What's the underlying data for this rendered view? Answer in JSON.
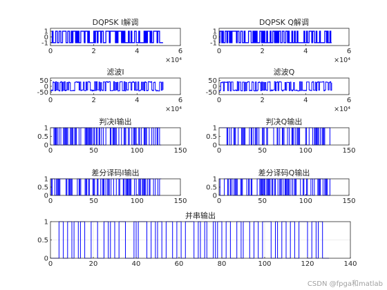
{
  "figure": {
    "watermark": "CSDN @fpga和matlab"
  },
  "colors": {
    "signal": "#0000ff",
    "axes": "#262626",
    "grid": "#dcdcdc",
    "text": "#262626"
  },
  "chart_data": [
    {
      "type": "line",
      "title": "DQPSK I解调",
      "xlim": [
        0,
        60000
      ],
      "ylim": [
        -1.5,
        1.5
      ],
      "xticks": [
        "0",
        "2",
        "4",
        "6"
      ],
      "yticks": [
        "-1",
        "0",
        "1"
      ],
      "x_exponent": "×10⁴",
      "grid": false,
      "x_end": 52000,
      "levels": [
        -1,
        1
      ],
      "symbols": 130
    },
    {
      "type": "line",
      "title": "DQPSK Q解调",
      "xlim": [
        0,
        60000
      ],
      "ylim": [
        -1.5,
        1.5
      ],
      "xticks": [
        "0",
        "2",
        "4",
        "6"
      ],
      "yticks": [
        "-1",
        "0",
        "1"
      ],
      "x_exponent": "×10⁴",
      "grid": false,
      "x_end": 52000,
      "levels": [
        -1,
        1
      ],
      "symbols": 130
    },
    {
      "type": "line",
      "title": "滤波I",
      "xlim": [
        0,
        60000
      ],
      "ylim": [
        -70,
        70
      ],
      "xticks": [
        "0",
        "2",
        "4",
        "6"
      ],
      "yticks": [
        "-50",
        "0",
        "50"
      ],
      "x_exponent": "×10⁴",
      "grid": false,
      "x_end": 52000,
      "levels": [
        -40,
        40
      ],
      "symbols": 130
    },
    {
      "type": "line",
      "title": "滤波Q",
      "xlim": [
        0,
        60000
      ],
      "ylim": [
        -70,
        70
      ],
      "xticks": [
        "0",
        "2",
        "4",
        "6"
      ],
      "yticks": [
        "-50",
        "0",
        "50"
      ],
      "x_exponent": "×10⁴",
      "grid": false,
      "x_end": 52000,
      "levels": [
        -40,
        40
      ],
      "symbols": 130
    },
    {
      "type": "line",
      "title": "判决I输出",
      "xlim": [
        0,
        150
      ],
      "ylim": [
        0,
        1
      ],
      "xticks": [
        "0",
        "50",
        "100",
        "150"
      ],
      "yticks": [
        "0",
        "0.5",
        "1"
      ],
      "grid": false,
      "x_end": 128,
      "levels": [
        0,
        1
      ],
      "symbols": 128
    },
    {
      "type": "line",
      "title": "判决Q输出",
      "xlim": [
        0,
        150
      ],
      "ylim": [
        0,
        1
      ],
      "xticks": [
        "0",
        "50",
        "100",
        "150"
      ],
      "yticks": [
        "0",
        "0.5",
        "1"
      ],
      "grid": false,
      "x_end": 128,
      "levels": [
        0,
        1
      ],
      "symbols": 128
    },
    {
      "type": "line",
      "title": "差分译码I输出",
      "xlim": [
        0,
        150
      ],
      "ylim": [
        0,
        1
      ],
      "xticks": [
        "0",
        "50",
        "100",
        "150"
      ],
      "yticks": [
        "0",
        "0.5",
        "1"
      ],
      "grid": false,
      "x_end": 128,
      "levels": [
        0,
        1
      ],
      "symbols": 128
    },
    {
      "type": "line",
      "title": "差分译码Q输出",
      "xlim": [
        0,
        150
      ],
      "ylim": [
        0,
        1
      ],
      "xticks": [
        "0",
        "50",
        "100",
        "150"
      ],
      "yticks": [
        "0",
        "0.5",
        "1"
      ],
      "grid": false,
      "x_end": 128,
      "levels": [
        0,
        1
      ],
      "symbols": 128
    },
    {
      "type": "line",
      "title": "并串输出",
      "xlim": [
        0,
        140
      ],
      "ylim": [
        0,
        1
      ],
      "xticks": [
        "0",
        "20",
        "40",
        "60",
        "80",
        "100",
        "120",
        "140"
      ],
      "yticks": [
        "0",
        "0.5",
        "1"
      ],
      "grid": true,
      "x_end": 130,
      "levels": [
        0,
        1
      ],
      "pulses": [
        [
          4,
          6
        ],
        [
          8,
          10
        ],
        [
          11,
          13
        ],
        [
          14,
          16
        ],
        [
          19,
          22
        ],
        [
          25,
          27
        ],
        [
          28,
          30
        ],
        [
          32,
          35
        ],
        [
          39,
          40
        ],
        [
          41,
          45
        ],
        [
          47,
          49
        ],
        [
          50,
          52
        ],
        [
          54,
          57
        ],
        [
          59,
          61
        ],
        [
          63,
          67
        ],
        [
          69,
          70
        ],
        [
          72,
          73
        ],
        [
          76,
          77
        ],
        [
          78,
          80
        ],
        [
          82,
          84
        ],
        [
          87,
          89
        ],
        [
          90,
          93
        ],
        [
          95,
          97
        ],
        [
          99,
          103
        ],
        [
          105,
          106
        ],
        [
          108,
          110
        ],
        [
          112,
          114
        ],
        [
          116,
          120
        ],
        [
          122,
          124
        ],
        [
          125,
          127
        ]
      ]
    }
  ]
}
